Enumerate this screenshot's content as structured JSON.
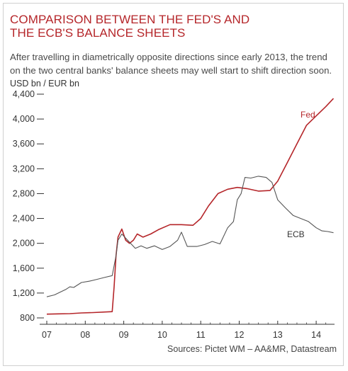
{
  "title": "COMPARISON BETWEEN THE FED'S AND THE ECB'S BALANCE SHEETS",
  "subtitle": "After travelling in diametrically opposite directions since early 2013, the trend on the two central banks' balance sheets may well start to shift direction soon.",
  "unit_label": "USD bn / EUR bn",
  "source": "Sources: Pictet WM – AA&MR, Datastream",
  "colors": {
    "title": "#b5262a",
    "fed": "#b5262a",
    "ecb": "#555555",
    "axis": "#333333"
  },
  "chart_data": {
    "type": "line",
    "x_axis": {
      "ticks": [
        "07",
        "08",
        "09",
        "10",
        "11",
        "12",
        "13",
        "14"
      ],
      "range": [
        2007.0,
        2014.45
      ]
    },
    "y_axis": {
      "ticks": [
        800,
        1200,
        1600,
        2000,
        2400,
        2800,
        3200,
        3600,
        4000,
        4400
      ],
      "range": [
        800,
        4400
      ]
    },
    "grid": false,
    "series": [
      {
        "name": "Fed",
        "points": [
          [
            2007.0,
            860
          ],
          [
            2007.3,
            865
          ],
          [
            2007.6,
            868
          ],
          [
            2007.9,
            880
          ],
          [
            2008.2,
            885
          ],
          [
            2008.5,
            895
          ],
          [
            2008.7,
            900
          ],
          [
            2008.75,
            1300
          ],
          [
            2008.8,
            1800
          ],
          [
            2008.85,
            2100
          ],
          [
            2008.95,
            2230
          ],
          [
            2009.05,
            2050
          ],
          [
            2009.15,
            2000
          ],
          [
            2009.25,
            2050
          ],
          [
            2009.35,
            2150
          ],
          [
            2009.5,
            2100
          ],
          [
            2009.7,
            2150
          ],
          [
            2009.9,
            2220
          ],
          [
            2010.2,
            2300
          ],
          [
            2010.5,
            2300
          ],
          [
            2010.8,
            2290
          ],
          [
            2011.0,
            2400
          ],
          [
            2011.2,
            2600
          ],
          [
            2011.45,
            2800
          ],
          [
            2011.7,
            2870
          ],
          [
            2011.95,
            2900
          ],
          [
            2012.2,
            2880
          ],
          [
            2012.5,
            2840
          ],
          [
            2012.8,
            2850
          ],
          [
            2013.0,
            3000
          ],
          [
            2013.25,
            3300
          ],
          [
            2013.5,
            3600
          ],
          [
            2013.75,
            3900
          ],
          [
            2014.0,
            4050
          ],
          [
            2014.25,
            4200
          ],
          [
            2014.45,
            4330
          ]
        ]
      },
      {
        "name": "ECB",
        "points": [
          [
            2007.0,
            1140
          ],
          [
            2007.2,
            1170
          ],
          [
            2007.4,
            1230
          ],
          [
            2007.5,
            1260
          ],
          [
            2007.6,
            1300
          ],
          [
            2007.7,
            1290
          ],
          [
            2007.9,
            1370
          ],
          [
            2008.1,
            1390
          ],
          [
            2008.3,
            1420
          ],
          [
            2008.5,
            1450
          ],
          [
            2008.7,
            1480
          ],
          [
            2008.8,
            1800
          ],
          [
            2008.85,
            2050
          ],
          [
            2008.95,
            2150
          ],
          [
            2009.1,
            2050
          ],
          [
            2009.3,
            1920
          ],
          [
            2009.45,
            1960
          ],
          [
            2009.6,
            1920
          ],
          [
            2009.8,
            1960
          ],
          [
            2010.0,
            1900
          ],
          [
            2010.2,
            1950
          ],
          [
            2010.4,
            2050
          ],
          [
            2010.5,
            2180
          ],
          [
            2010.65,
            1950
          ],
          [
            2010.9,
            1950
          ],
          [
            2011.1,
            1980
          ],
          [
            2011.3,
            2030
          ],
          [
            2011.5,
            1990
          ],
          [
            2011.7,
            2250
          ],
          [
            2011.85,
            2350
          ],
          [
            2011.95,
            2700
          ],
          [
            2012.05,
            2800
          ],
          [
            2012.15,
            3060
          ],
          [
            2012.3,
            3050
          ],
          [
            2012.5,
            3080
          ],
          [
            2012.7,
            3060
          ],
          [
            2012.85,
            2980
          ],
          [
            2013.0,
            2700
          ],
          [
            2013.2,
            2570
          ],
          [
            2013.4,
            2450
          ],
          [
            2013.6,
            2400
          ],
          [
            2013.8,
            2350
          ],
          [
            2014.0,
            2250
          ],
          [
            2014.15,
            2200
          ],
          [
            2014.3,
            2190
          ],
          [
            2014.45,
            2170
          ]
        ]
      }
    ]
  }
}
